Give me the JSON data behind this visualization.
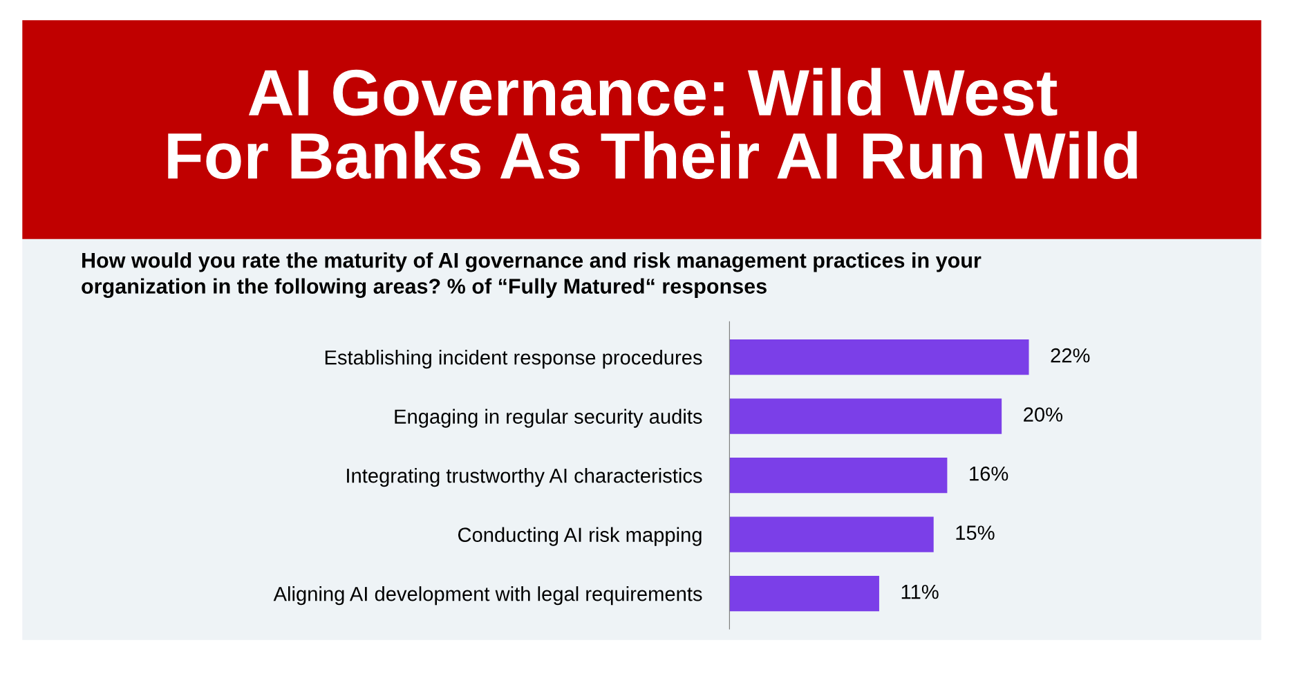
{
  "chart_data": {
    "type": "bar",
    "orientation": "horizontal",
    "title": "AI Governance: Wild West\nFor Banks As Their AI Run Wild",
    "subtitle": "How would you rate the maturity of AI governance and risk management practices in your\norganization in the following areas? % of “Fully Matured“ responses",
    "categories": [
      "Establishing incident response procedures",
      "Engaging in regular security audits",
      "Integrating trustworthy AI characteristics",
      "Conducting AI risk mapping",
      "Aligning AI development with legal requirements"
    ],
    "values": [
      22,
      20,
      16,
      15,
      11
    ],
    "value_labels": [
      "22%",
      "20%",
      "16%",
      "15%",
      "11%"
    ],
    "color": "#7b3fe8",
    "grid": false,
    "legend": false
  }
}
